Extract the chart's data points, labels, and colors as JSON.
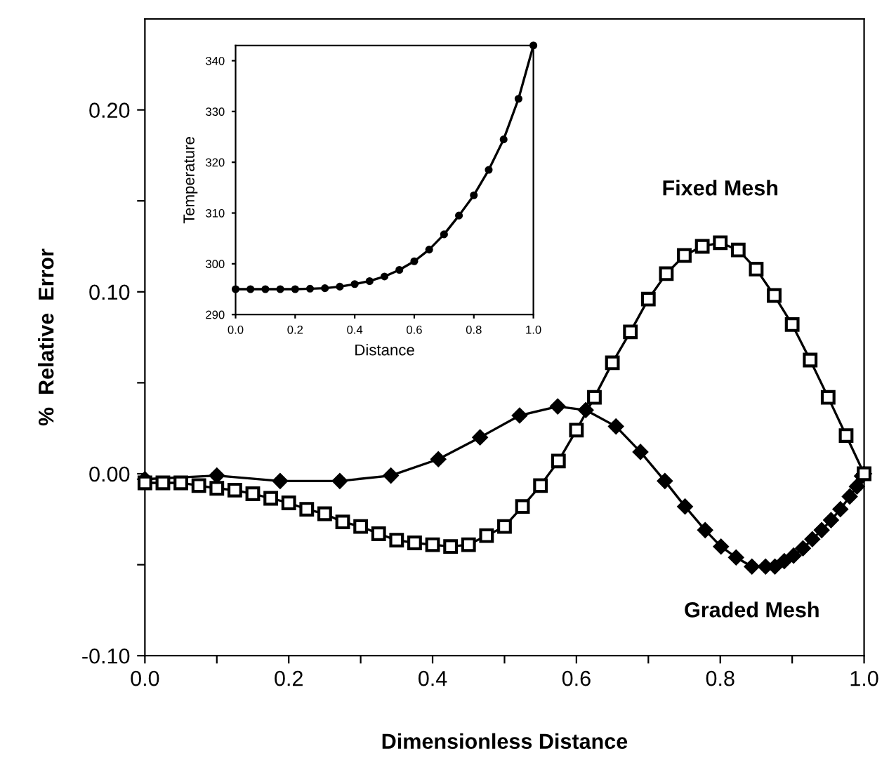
{
  "chart_data": [
    {
      "type": "line",
      "xlabel": "Dimensionless Distance",
      "ylabel": "%  Relative  Error",
      "xlim": [
        0,
        1
      ],
      "ylim": [
        -0.1,
        0.25
      ],
      "xticks": [
        {
          "value": 0,
          "label": "0.0"
        },
        {
          "value": 0.1,
          "label": null
        },
        {
          "value": 0.2,
          "label": "0.2"
        },
        {
          "value": 0.3,
          "label": null
        },
        {
          "value": 0.4,
          "label": "0.4"
        },
        {
          "value": 0.5,
          "label": null
        },
        {
          "value": 0.6,
          "label": "0.6"
        },
        {
          "value": 0.7,
          "label": null
        },
        {
          "value": 0.8,
          "label": "0.8"
        },
        {
          "value": 0.9,
          "label": null
        },
        {
          "value": 1,
          "label": "1.0"
        }
      ],
      "yticks": [
        {
          "value": -0.1,
          "label": "-0.10"
        },
        {
          "value": -0.05,
          "label": null
        },
        {
          "value": 0,
          "label": "0.00"
        },
        {
          "value": 0.05,
          "label": null
        },
        {
          "value": 0.1,
          "label": "0.10"
        },
        {
          "value": 0.15,
          "label": null
        },
        {
          "value": 0.2,
          "label": "0.20"
        }
      ],
      "grid": false,
      "legend": false,
      "series": [
        {
          "name": "Fixed Mesh",
          "color": "#000000",
          "marker": "square",
          "x": [
            0,
            0.025,
            0.05,
            0.075,
            0.1,
            0.125,
            0.15,
            0.175,
            0.2,
            0.225,
            0.25,
            0.275,
            0.3,
            0.325,
            0.35,
            0.375,
            0.4,
            0.425,
            0.45,
            0.475,
            0.5,
            0.525,
            0.55,
            0.575,
            0.6,
            0.625,
            0.65,
            0.675,
            0.7,
            0.725,
            0.75,
            0.775,
            0.8,
            0.825,
            0.85,
            0.875,
            0.9,
            0.925,
            0.95,
            0.975,
            1.0
          ],
          "values": [
            -0.005,
            -0.005,
            -0.005,
            -0.0065,
            -0.008,
            -0.009,
            -0.011,
            -0.0135,
            -0.016,
            -0.0195,
            -0.022,
            -0.0265,
            -0.029,
            -0.033,
            -0.0365,
            -0.038,
            -0.039,
            -0.04,
            -0.039,
            -0.034,
            -0.029,
            -0.018,
            -0.0065,
            0.007,
            0.024,
            0.042,
            0.061,
            0.078,
            0.096,
            0.11,
            0.12,
            0.125,
            0.127,
            0.123,
            0.1125,
            0.098,
            0.082,
            0.0625,
            0.042,
            0.021,
            0.0
          ]
        },
        {
          "name": "Graded Mesh",
          "color": "#000000",
          "marker": "diamond",
          "x": [
            0,
            0.1,
            0.188,
            0.271,
            0.342,
            0.408,
            0.466,
            0.521,
            0.574,
            0.613,
            0.655,
            0.689,
            0.723,
            0.751,
            0.779,
            0.801,
            0.822,
            0.844,
            0.863,
            0.876,
            0.889,
            0.902,
            0.915,
            0.928,
            0.941,
            0.954,
            0.967,
            0.98,
            0.99,
            0.997,
            1.0
          ],
          "values": [
            -0.003,
            -0.001,
            -0.004,
            -0.004,
            -0.001,
            0.008,
            0.02,
            0.032,
            0.037,
            0.035,
            0.026,
            0.012,
            -0.004,
            -0.018,
            -0.031,
            -0.04,
            -0.046,
            -0.051,
            -0.051,
            -0.051,
            -0.048,
            -0.045,
            -0.041,
            -0.036,
            -0.031,
            -0.0255,
            -0.0195,
            -0.0125,
            -0.007,
            -0.0013,
            0.0
          ]
        }
      ]
    },
    {
      "type": "line",
      "xlabel": "Distance",
      "ylabel": "Temperature",
      "xlim": [
        0,
        1
      ],
      "ylim": [
        290,
        343
      ],
      "xticks": [
        {
          "value": 0,
          "label": "0.0"
        },
        {
          "value": 0.2,
          "label": "0.2"
        },
        {
          "value": 0.4,
          "label": "0.4"
        },
        {
          "value": 0.6,
          "label": "0.6"
        },
        {
          "value": 0.8,
          "label": "0.8"
        },
        {
          "value": 1,
          "label": "1.0"
        }
      ],
      "yticks": [
        290,
        300,
        310,
        320,
        330,
        340
      ],
      "grid": false,
      "legend": false,
      "series": [
        {
          "color": "#000000",
          "marker": "circle",
          "x": [
            0,
            0.05,
            0.1,
            0.15,
            0.2,
            0.25,
            0.3,
            0.35,
            0.4,
            0.45,
            0.5,
            0.55,
            0.6,
            0.65,
            0.7,
            0.75,
            0.8,
            0.85,
            0.9,
            0.95,
            1.0
          ],
          "values": [
            295,
            295,
            295,
            295,
            295,
            295.1,
            295.2,
            295.5,
            296,
            296.6,
            297.5,
            298.8,
            300.5,
            302.8,
            305.8,
            309.5,
            313.5,
            318.5,
            324.5,
            332.5,
            343
          ]
        }
      ]
    }
  ]
}
